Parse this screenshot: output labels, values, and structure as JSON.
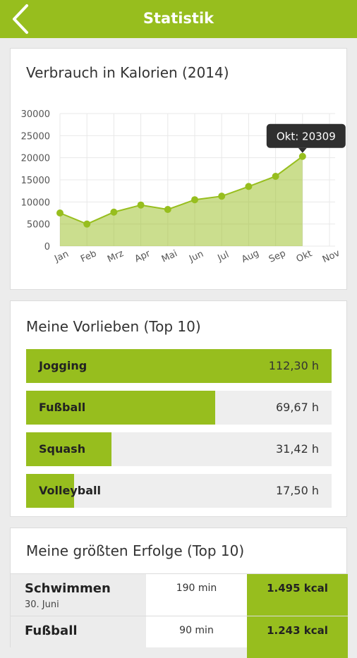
{
  "appbar": {
    "title": "Statistik",
    "back_icon": "chevron-left-icon",
    "color": "#97be1e"
  },
  "calorie_card": {
    "title": "Verbrauch in Kalorien (2014)"
  },
  "chart_data": {
    "type": "area",
    "title": "Verbrauch in Kalorien (2014)",
    "categories": [
      "Jan",
      "Feb",
      "Mrz",
      "Apr",
      "Mai",
      "Jun",
      "Jul",
      "Aug",
      "Sep",
      "Okt",
      "Nov"
    ],
    "values": [
      7500,
      5000,
      7700,
      9300,
      8300,
      10500,
      11300,
      13500,
      15800,
      20309,
      null
    ],
    "ylim": [
      0,
      30000
    ],
    "yticks": [
      "30000",
      "25000",
      "20000",
      "15000",
      "10000",
      "5000",
      "0"
    ],
    "grid": true,
    "color": "#97be1e",
    "tooltip": "Okt: 20309"
  },
  "favorites": {
    "title": "Meine Vorlieben (Top 10)",
    "items": [
      {
        "name": "Jogging",
        "value": "112,30 h",
        "fraction": 1.0
      },
      {
        "name": "Fußball",
        "value": "69,67 h",
        "fraction": 0.62
      },
      {
        "name": "Squash",
        "value": "31,42 h",
        "fraction": 0.28
      },
      {
        "name": "Volleyball",
        "value": "17,50 h",
        "fraction": 0.156
      }
    ]
  },
  "successes": {
    "title": "Meine größten Erfolge (Top 10)",
    "items": [
      {
        "name": "Schwimmen",
        "date": "30. Juni",
        "duration": "190 min",
        "kcal": "1.495 kcal"
      },
      {
        "name": "Fußball",
        "date": "",
        "duration": "90 min",
        "kcal": "1.243 kcal"
      }
    ]
  }
}
